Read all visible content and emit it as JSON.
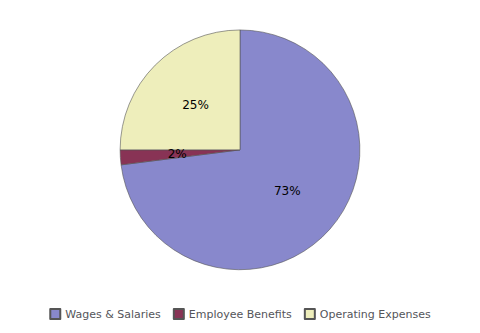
{
  "chart_data": {
    "type": "pie",
    "categories": [
      "Wages & Salaries",
      "Employee Benefits",
      "Operating Expenses"
    ],
    "values": [
      73,
      2,
      25
    ],
    "value_labels": [
      "73%",
      "2%",
      "25%"
    ],
    "colors": [
      "#8888cc",
      "#883355",
      "#eeeebb"
    ],
    "data_labels": true,
    "legend": "bottom"
  }
}
